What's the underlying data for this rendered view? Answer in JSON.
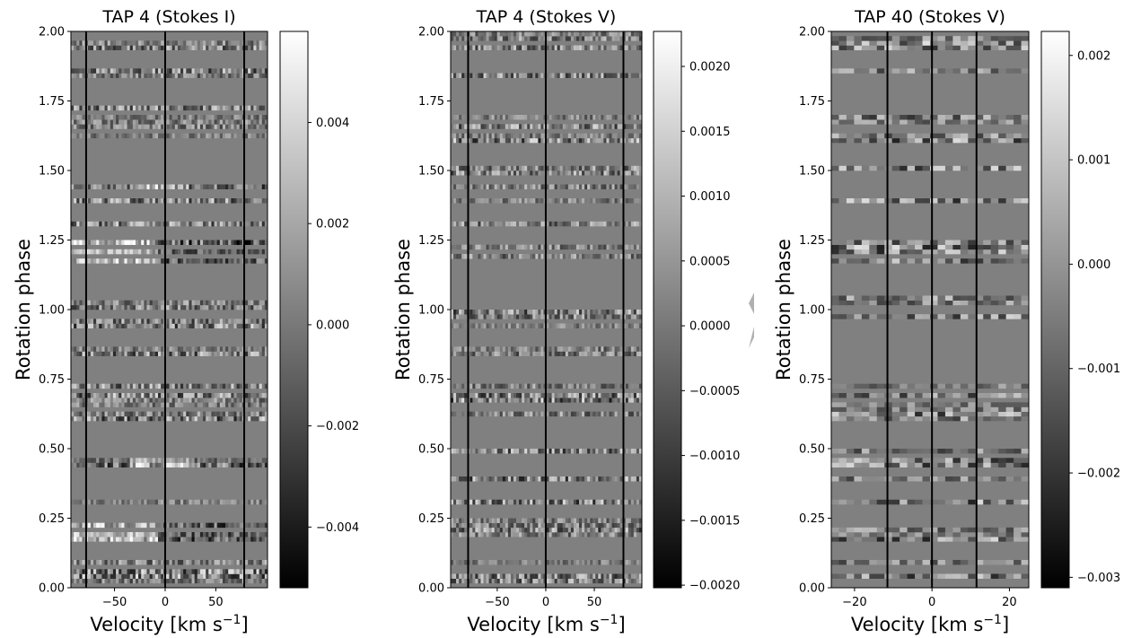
{
  "chart_data": [
    {
      "type": "heatmap",
      "title": "TAP 4 (Stokes I)",
      "xlabel": "Velocity [km s",
      "xlabel_sup": "−1",
      "xlabel_close": "]",
      "ylabel": "Rotation phase",
      "xlim": [
        -93,
        101
      ],
      "ylim": [
        0,
        2
      ],
      "x_ticks": [
        -50,
        0,
        50
      ],
      "x_tick_labels": [
        "−50",
        "0",
        "50"
      ],
      "y_ticks": [
        0,
        0.25,
        0.5,
        0.75,
        1.0,
        1.25,
        1.5,
        1.75,
        2.0
      ],
      "y_tick_labels": [
        "0.00",
        "0.25",
        "0.50",
        "0.75",
        "1.00",
        "1.25",
        "1.50",
        "1.75",
        "2.00"
      ],
      "vlines": [
        -78,
        0,
        78
      ],
      "colorbar": {
        "range": [
          -0.0052,
          0.0058
        ],
        "ticks": [
          0.004,
          0.002,
          0.0,
          -0.002,
          -0.004
        ],
        "tick_labels": [
          "0.004",
          "0.002",
          "0.000",
          "−0.002",
          "−0.004"
        ]
      },
      "colormap": "gray",
      "grid": false
    },
    {
      "type": "heatmap",
      "title": "TAP 4 (Stokes V)",
      "xlabel": "Velocity [km s",
      "xlabel_sup": "−1",
      "xlabel_close": "]",
      "ylabel": "Rotation phase",
      "xlim": [
        -98,
        99
      ],
      "ylim": [
        0,
        2
      ],
      "x_ticks": [
        -50,
        0,
        50
      ],
      "x_tick_labels": [
        "−50",
        "0",
        "50"
      ],
      "y_ticks": [
        0,
        0.25,
        0.5,
        0.75,
        1.0,
        1.25,
        1.5,
        1.75,
        2.0
      ],
      "y_tick_labels": [
        "0.00",
        "0.25",
        "0.50",
        "0.75",
        "1.00",
        "1.25",
        "1.50",
        "1.75",
        "2.00"
      ],
      "vlines": [
        -80,
        0,
        80
      ],
      "colorbar": {
        "range": [
          -0.00202,
          0.00227
        ],
        "ticks": [
          0.002,
          0.0015,
          0.001,
          0.0005,
          0.0,
          -0.0005,
          -0.001,
          -0.0015,
          -0.002
        ],
        "tick_labels": [
          "0.0020",
          "0.0015",
          "0.0010",
          "0.0005",
          "0.0000",
          "−0.0005",
          "−0.0010",
          "−0.0015",
          "−0.0020"
        ]
      },
      "colormap": "gray",
      "grid": false
    },
    {
      "type": "heatmap",
      "title": "TAP 40 (Stokes V)",
      "xlabel": "Velocity [km s",
      "xlabel_sup": "−1",
      "xlabel_close": "]",
      "ylabel": "Rotation phase",
      "xlim": [
        -26,
        25
      ],
      "ylim": [
        0,
        2
      ],
      "x_ticks": [
        -20,
        0,
        20
      ],
      "x_tick_labels": [
        "−20",
        "0",
        "20"
      ],
      "y_ticks": [
        0,
        0.25,
        0.5,
        0.75,
        1.0,
        1.25,
        1.5,
        1.75,
        2.0
      ],
      "y_tick_labels": [
        "0.00",
        "0.25",
        "0.50",
        "0.75",
        "1.00",
        "1.25",
        "1.50",
        "1.75",
        "2.00"
      ],
      "vlines": [
        -11.5,
        0,
        11.5
      ],
      "colorbar": {
        "range": [
          -0.0031,
          0.00223
        ],
        "ticks": [
          0.002,
          0.001,
          0.0,
          -0.001,
          -0.002,
          -0.003
        ],
        "tick_labels": [
          "0.002",
          "0.001",
          "0.000",
          "−0.001",
          "−0.002",
          "−0.003"
        ]
      },
      "colormap": "gray",
      "grid": false
    }
  ]
}
